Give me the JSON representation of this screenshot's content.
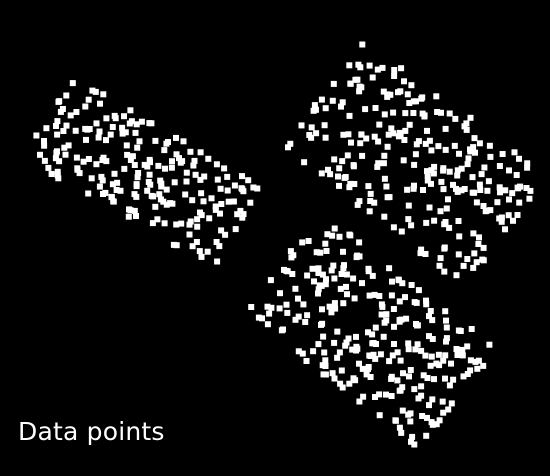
{
  "caption": "Data points",
  "colors": {
    "background": "#000000",
    "point": "#ffffff"
  },
  "chart_data": {
    "type": "scatter",
    "title": "",
    "xlabel": "",
    "ylabel": "",
    "axes_visible": false,
    "grid": false,
    "legend": "none",
    "clusters": [
      {
        "shape": "tilted rectangle",
        "center": [
          142,
          172
        ],
        "half_lengths": [
          110,
          48
        ],
        "angle_deg": 30,
        "point_count": 210
      },
      {
        "shape": "tilted rectangle",
        "center": [
          415,
          163
        ],
        "half_lengths": [
          115,
          70
        ],
        "angle_deg": 38,
        "point_count": 250
      },
      {
        "shape": "tilted rectangle",
        "center": [
          370,
          330
        ],
        "half_lengths": [
          112,
          64
        ],
        "angle_deg": 38,
        "point_count": 260
      }
    ]
  }
}
